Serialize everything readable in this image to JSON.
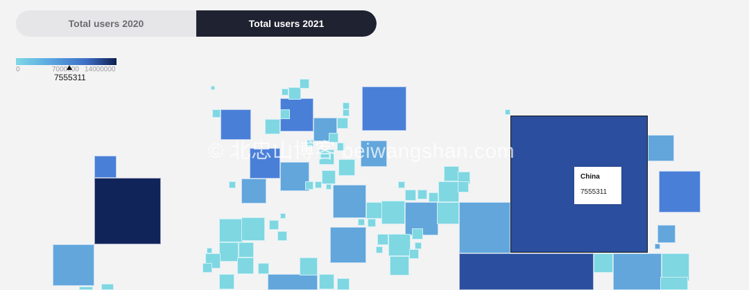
{
  "toggle": {
    "option_2020": "Total users 2020",
    "option_2021": "Total users 2021",
    "selected": "Total users 2021"
  },
  "legend": {
    "tick_min": "0",
    "tick_mid": "7000000",
    "tick_max": "14000000",
    "marker_value": "7555311",
    "colors": [
      "#7fd7e6",
      "#5aa6e0",
      "#3d6ec4",
      "#0e1f50"
    ]
  },
  "tooltip": {
    "country": "China",
    "value": "7555311"
  },
  "watermark": "© 北忠山博客 beiwangshan.com",
  "colors": {
    "highlight": "#2b4f9e",
    "dark": "#11245a",
    "blue": "#4a7fd8",
    "mid": "#62a6dc",
    "cyan": "#7fd7e2"
  }
}
